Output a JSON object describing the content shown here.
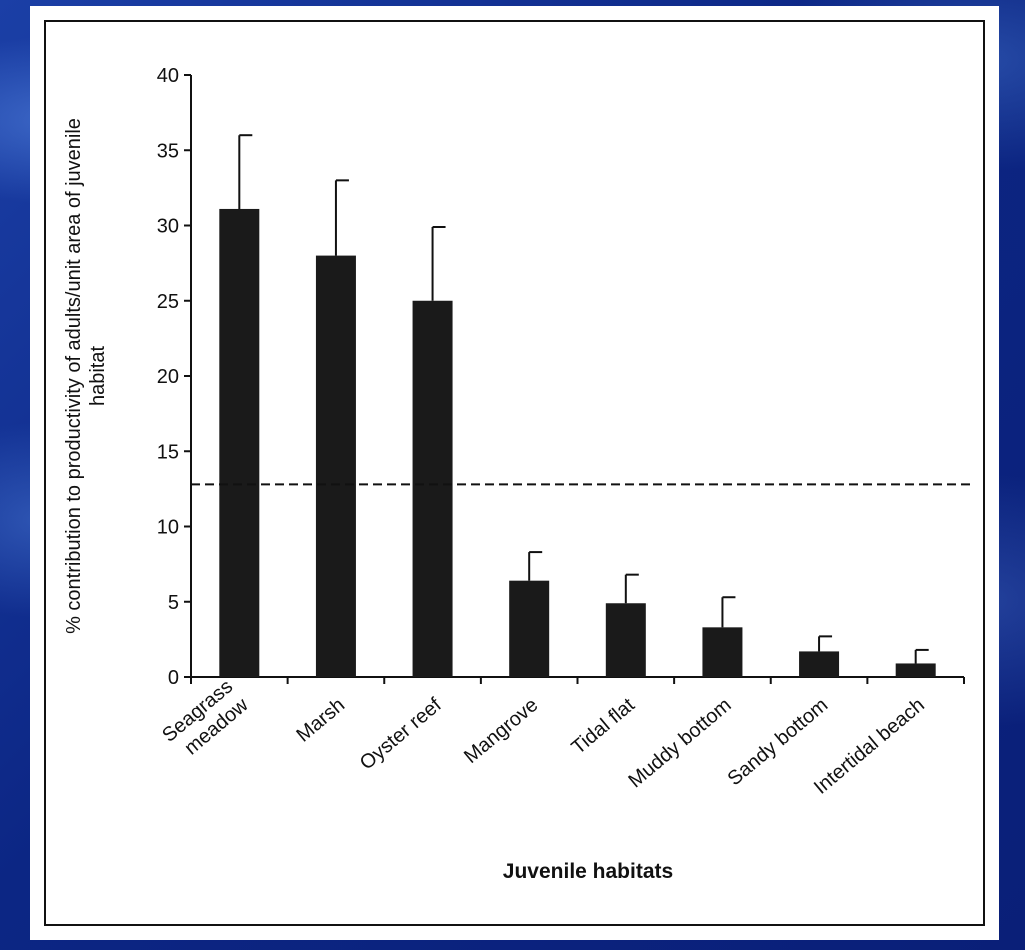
{
  "chart_data": {
    "type": "bar",
    "title": "",
    "xlabel": "Juvenile habitats",
    "ylabel": "% contribution to productivity of adults/unit area of juvenile habitat",
    "ylabel_lines": [
      "% contribution to productivity of adults/unit area of juvenile",
      "habitat"
    ],
    "categories": [
      "Seagrass meadow",
      "Marsh",
      "Oyster reef",
      "Mangrove",
      "Tidal flat",
      "Muddy bottom",
      "Sandy bottom",
      "Intertidal beach"
    ],
    "category_lines": [
      [
        "Seagrass",
        "meadow"
      ],
      [
        "Marsh"
      ],
      [
        "Oyster reef"
      ],
      [
        "Mangrove"
      ],
      [
        "Tidal flat"
      ],
      [
        "Muddy bottom"
      ],
      [
        "Sandy bottom"
      ],
      [
        "Intertidal beach"
      ]
    ],
    "values": [
      31.1,
      28.0,
      25.0,
      6.4,
      4.9,
      3.3,
      1.7,
      0.9
    ],
    "error_upper": [
      36.0,
      33.0,
      29.9,
      8.3,
      6.8,
      5.3,
      2.7,
      1.8
    ],
    "reference_line": 12.8,
    "reference_line_style": "dashed",
    "ylim": [
      0,
      40
    ],
    "yticks": [
      0,
      5,
      10,
      15,
      20,
      25,
      30,
      35,
      40
    ],
    "grid": false,
    "legend": "none",
    "bar_color": "#1a1a1a",
    "axis_color": "#111111"
  },
  "colors": {
    "slide_background": "#0d2a86",
    "panel_background": "#ffffff"
  }
}
